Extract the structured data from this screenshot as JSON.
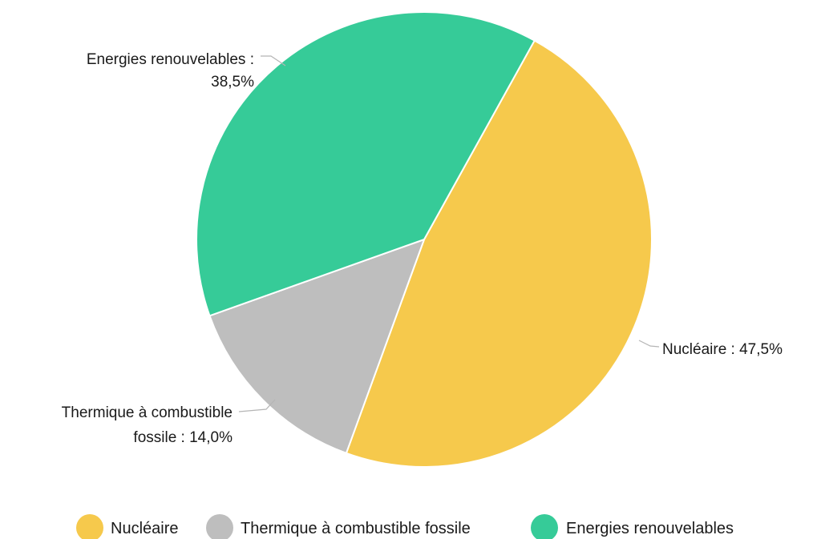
{
  "chart_data": {
    "type": "pie",
    "title": "",
    "series": [
      {
        "name": "Nucléaire",
        "value": 47.5,
        "color": "#F6C94C",
        "label_lines": [
          "Nucléaire : 47,5%"
        ]
      },
      {
        "name": "Thermique à combustible fossile",
        "value": 14.0,
        "color": "#BEBEBE",
        "label_lines": [
          "Thermique à combustible",
          "fossile : 14,0%"
        ]
      },
      {
        "name": "Energies renouvelables",
        "value": 38.5,
        "color": "#36CB98",
        "label_lines": [
          "Energies renouvelables :",
          "38,5%"
        ]
      }
    ],
    "legend": {
      "position": "bottom",
      "items": [
        "Nucléaire",
        "Thermique à combustible fossile",
        "Energies renouvelables"
      ]
    },
    "start_angle_deg": 29,
    "direction": "clockwise"
  }
}
